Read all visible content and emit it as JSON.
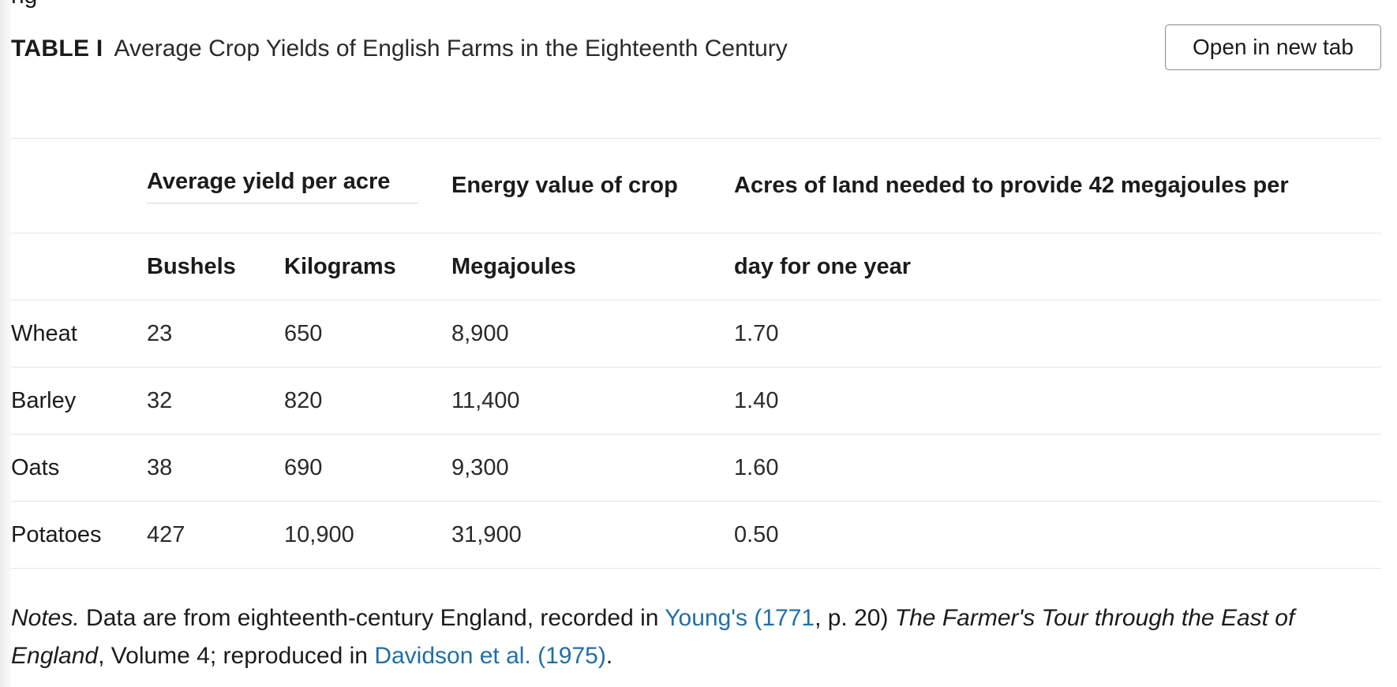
{
  "top_fragment": "ng",
  "caption": {
    "label": "TABLE I",
    "title": "Average Crop Yields of English Farms in the Eighteenth Century"
  },
  "open_button_label": "Open in new tab",
  "table": {
    "group_headers": {
      "yield": "Average yield per acre",
      "energy": "Energy value of crop",
      "acres_line1": "Acres of land needed to provide 42 megajoules per"
    },
    "sub_headers": {
      "bushels": "Bushels",
      "kilograms": "Kilograms",
      "megajoules": "Megajoules",
      "acres_line2": "day for one year"
    },
    "rows": [
      {
        "crop": "Wheat",
        "bushels": "23",
        "kilograms": "650",
        "megajoules": "8,900",
        "acres": "1.70"
      },
      {
        "crop": "Barley",
        "bushels": "32",
        "kilograms": "820",
        "megajoules": "11,400",
        "acres": "1.40"
      },
      {
        "crop": "Oats",
        "bushels": "38",
        "kilograms": "690",
        "megajoules": "9,300",
        "acres": "1.60"
      },
      {
        "crop": "Potatoes",
        "bushels": "427",
        "kilograms": "10,900",
        "megajoules": "31,900",
        "acres": "0.50"
      }
    ]
  },
  "notes": {
    "label": "Notes.",
    "text1": " Data are from eighteenth-century England, recorded in ",
    "link1": "Young's (1771",
    "text2": ", p. 20) ",
    "book_title": "The Farmer's Tour through the East of England",
    "text3": ", Volume 4; reproduced in ",
    "link2": "Davidson et al. (1975)",
    "text4": "."
  },
  "colors": {
    "link": "#1f6fa8",
    "rule": "#e2e6ea",
    "text": "#1b1b1b"
  }
}
